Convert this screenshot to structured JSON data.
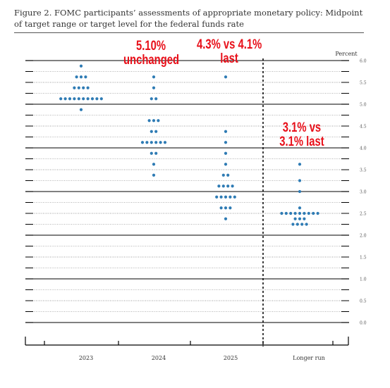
{
  "caption": "Figure 2.  FOMC participants’ assessments of appropriate monetary policy:  Midpoint of target range or target level for the federal funds rate",
  "colors": {
    "dot": "#2e7bb4",
    "annotation": "#e8101a",
    "grid": "#000000"
  },
  "chart_data": {
    "type": "scatter",
    "ylabel": "Percent",
    "ylim": [
      0,
      6.0
    ],
    "yticks": [
      "6.0",
      "5.5",
      "5.0",
      "4.5",
      "4.0",
      "3.5",
      "3.0",
      "2.5",
      "2.0",
      "1.5",
      "1.0",
      "0.5",
      "0.0"
    ],
    "categories": [
      "2023",
      "2024",
      "2025",
      "Longer run"
    ],
    "series": [
      {
        "category": "2023",
        "points": [
          {
            "y": 5.875,
            "count": 1
          },
          {
            "y": 5.625,
            "count": 3
          },
          {
            "y": 5.375,
            "count": 4
          },
          {
            "y": 5.125,
            "count": 10
          },
          {
            "y": 4.875,
            "count": 1
          }
        ]
      },
      {
        "category": "2024",
        "points": [
          {
            "y": 5.625,
            "count": 1
          },
          {
            "y": 5.375,
            "count": 1
          },
          {
            "y": 5.125,
            "count": 2
          },
          {
            "y": 4.625,
            "count": 3
          },
          {
            "y": 4.375,
            "count": 2
          },
          {
            "y": 4.125,
            "count": 6
          },
          {
            "y": 3.875,
            "count": 2
          },
          {
            "y": 3.625,
            "count": 1
          },
          {
            "y": 3.375,
            "count": 1
          }
        ]
      },
      {
        "category": "2025",
        "points": [
          {
            "y": 5.625,
            "count": 1
          },
          {
            "y": 4.375,
            "count": 1
          },
          {
            "y": 4.125,
            "count": 1
          },
          {
            "y": 3.875,
            "count": 1
          },
          {
            "y": 3.625,
            "count": 1
          },
          {
            "y": 3.375,
            "count": 2
          },
          {
            "y": 3.125,
            "count": 4
          },
          {
            "y": 2.875,
            "count": 5
          },
          {
            "y": 2.625,
            "count": 3
          },
          {
            "y": 2.375,
            "count": 1
          }
        ]
      },
      {
        "category": "Longer run",
        "points": [
          {
            "y": 3.625,
            "count": 1
          },
          {
            "y": 3.25,
            "count": 1
          },
          {
            "y": 3.0,
            "count": 1
          },
          {
            "y": 2.625,
            "count": 1
          },
          {
            "y": 2.5,
            "count": 9
          },
          {
            "y": 2.375,
            "count": 3
          },
          {
            "y": 2.25,
            "count": 4
          }
        ]
      }
    ],
    "annotations": [
      {
        "id": "ann-2023",
        "lines": [
          "5.10%",
          "unchanged"
        ]
      },
      {
        "id": "ann-2025",
        "lines": [
          "4.3% vs 4.1%",
          "last"
        ]
      },
      {
        "id": "ann-longrun",
        "lines": [
          "3.1% vs",
          "3.1% last"
        ]
      }
    ]
  }
}
